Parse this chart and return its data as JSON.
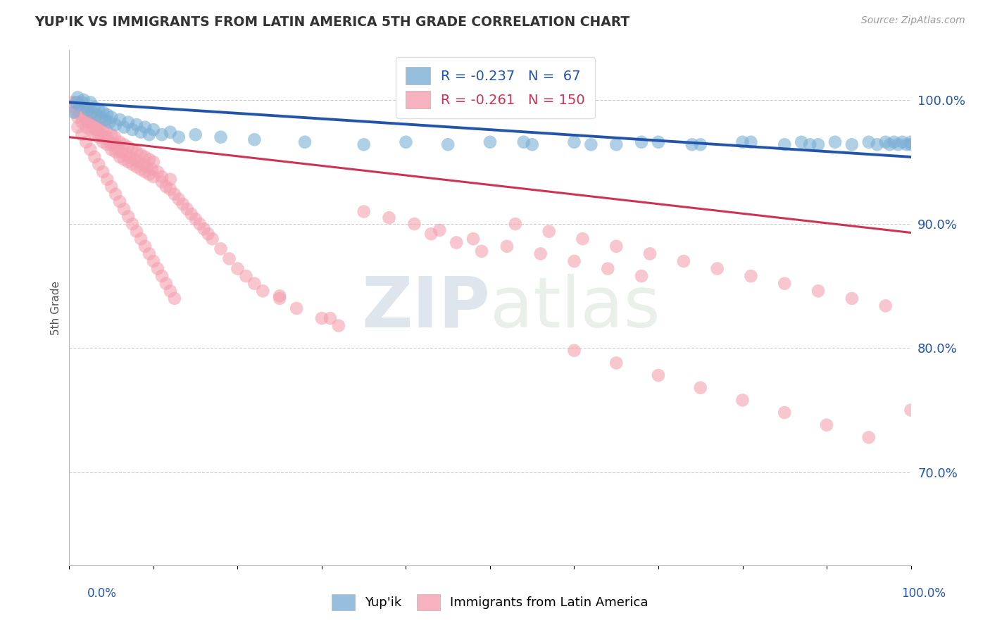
{
  "title": "YUP'IK VS IMMIGRANTS FROM LATIN AMERICA 5TH GRADE CORRELATION CHART",
  "source": "Source: ZipAtlas.com",
  "ylabel": "5th Grade",
  "yticks": [
    0.7,
    0.8,
    0.9,
    1.0
  ],
  "ytick_labels": [
    "70.0%",
    "80.0%",
    "90.0%",
    "100.0%"
  ],
  "ymin": 0.625,
  "ymax": 1.04,
  "xmin": 0.0,
  "xmax": 1.0,
  "blue_R": -0.237,
  "blue_N": 67,
  "pink_R": -0.261,
  "pink_N": 150,
  "blue_color": "#7BAFD4",
  "pink_color": "#F4A0B0",
  "blue_line_color": "#2255AA",
  "pink_line_color": "#CC3355",
  "legend_label_blue": "Yup'ik",
  "legend_label_pink": "Immigrants from Latin America",
  "blue_x": [
    0.005,
    0.008,
    0.01,
    0.012,
    0.015,
    0.017,
    0.02,
    0.022,
    0.025,
    0.027,
    0.03,
    0.033,
    0.035,
    0.038,
    0.04,
    0.043,
    0.045,
    0.048,
    0.05,
    0.055,
    0.06,
    0.065,
    0.07,
    0.075,
    0.08,
    0.085,
    0.09,
    0.095,
    0.1,
    0.11,
    0.12,
    0.13,
    0.15,
    0.18,
    0.22,
    0.28,
    0.35,
    0.4,
    0.45,
    0.5,
    0.55,
    0.6,
    0.65,
    0.7,
    0.75,
    0.8,
    0.85,
    0.87,
    0.89,
    0.91,
    0.93,
    0.95,
    0.96,
    0.97,
    0.975,
    0.98,
    0.985,
    0.99,
    0.995,
    1.0,
    1.0,
    0.54,
    0.62,
    0.68,
    0.74,
    0.81,
    0.88
  ],
  "blue_y": [
    0.99,
    0.998,
    1.002,
    0.996,
    0.998,
    1.0,
    0.994,
    0.992,
    0.998,
    0.99,
    0.994,
    0.988,
    0.992,
    0.986,
    0.99,
    0.984,
    0.988,
    0.982,
    0.986,
    0.98,
    0.984,
    0.978,
    0.982,
    0.976,
    0.98,
    0.974,
    0.978,
    0.972,
    0.976,
    0.972,
    0.974,
    0.97,
    0.972,
    0.97,
    0.968,
    0.966,
    0.964,
    0.966,
    0.964,
    0.966,
    0.964,
    0.966,
    0.964,
    0.966,
    0.964,
    0.966,
    0.964,
    0.966,
    0.964,
    0.966,
    0.964,
    0.966,
    0.964,
    0.966,
    0.964,
    0.966,
    0.964,
    0.966,
    0.964,
    0.966,
    0.964,
    0.966,
    0.964,
    0.966,
    0.964,
    0.966,
    0.964
  ],
  "pink_x": [
    0.004,
    0.006,
    0.008,
    0.01,
    0.01,
    0.012,
    0.014,
    0.015,
    0.015,
    0.018,
    0.02,
    0.02,
    0.022,
    0.024,
    0.025,
    0.025,
    0.028,
    0.03,
    0.03,
    0.032,
    0.034,
    0.035,
    0.035,
    0.038,
    0.04,
    0.04,
    0.042,
    0.044,
    0.045,
    0.045,
    0.048,
    0.05,
    0.05,
    0.052,
    0.054,
    0.055,
    0.055,
    0.058,
    0.06,
    0.06,
    0.062,
    0.065,
    0.065,
    0.068,
    0.07,
    0.07,
    0.072,
    0.075,
    0.075,
    0.078,
    0.08,
    0.08,
    0.082,
    0.085,
    0.085,
    0.088,
    0.09,
    0.09,
    0.092,
    0.095,
    0.095,
    0.098,
    0.1,
    0.1,
    0.105,
    0.11,
    0.11,
    0.115,
    0.12,
    0.12,
    0.125,
    0.13,
    0.135,
    0.14,
    0.145,
    0.15,
    0.155,
    0.16,
    0.165,
    0.17,
    0.18,
    0.19,
    0.2,
    0.21,
    0.22,
    0.23,
    0.25,
    0.27,
    0.3,
    0.32,
    0.35,
    0.38,
    0.41,
    0.44,
    0.48,
    0.52,
    0.56,
    0.6,
    0.64,
    0.68,
    0.43,
    0.46,
    0.49,
    0.25,
    0.31,
    0.6,
    0.65,
    0.7,
    0.75,
    0.8,
    0.85,
    0.9,
    0.95,
    1.0,
    0.53,
    0.57,
    0.61,
    0.65,
    0.69,
    0.73,
    0.77,
    0.81,
    0.85,
    0.89,
    0.93,
    0.97,
    0.01,
    0.015,
    0.02,
    0.025,
    0.03,
    0.035,
    0.04,
    0.045,
    0.05,
    0.055,
    0.06,
    0.065,
    0.07,
    0.075,
    0.08,
    0.085,
    0.09,
    0.095,
    0.1,
    0.105,
    0.11,
    0.115,
    0.12,
    0.125
  ],
  "pink_y": [
    0.998,
    0.994,
    0.99,
    0.998,
    0.986,
    0.992,
    0.988,
    0.994,
    0.982,
    0.986,
    0.992,
    0.978,
    0.982,
    0.988,
    0.976,
    0.982,
    0.978,
    0.984,
    0.972,
    0.976,
    0.982,
    0.97,
    0.976,
    0.972,
    0.978,
    0.966,
    0.97,
    0.976,
    0.964,
    0.97,
    0.966,
    0.972,
    0.96,
    0.964,
    0.97,
    0.958,
    0.964,
    0.96,
    0.966,
    0.954,
    0.958,
    0.964,
    0.952,
    0.956,
    0.962,
    0.95,
    0.954,
    0.96,
    0.948,
    0.952,
    0.958,
    0.946,
    0.95,
    0.956,
    0.944,
    0.948,
    0.954,
    0.942,
    0.946,
    0.952,
    0.94,
    0.944,
    0.95,
    0.938,
    0.942,
    0.938,
    0.934,
    0.93,
    0.936,
    0.928,
    0.924,
    0.92,
    0.916,
    0.912,
    0.908,
    0.904,
    0.9,
    0.896,
    0.892,
    0.888,
    0.88,
    0.872,
    0.864,
    0.858,
    0.852,
    0.846,
    0.84,
    0.832,
    0.824,
    0.818,
    0.91,
    0.905,
    0.9,
    0.895,
    0.888,
    0.882,
    0.876,
    0.87,
    0.864,
    0.858,
    0.892,
    0.885,
    0.878,
    0.842,
    0.824,
    0.798,
    0.788,
    0.778,
    0.768,
    0.758,
    0.748,
    0.738,
    0.728,
    0.75,
    0.9,
    0.894,
    0.888,
    0.882,
    0.876,
    0.87,
    0.864,
    0.858,
    0.852,
    0.846,
    0.84,
    0.834,
    0.978,
    0.972,
    0.966,
    0.96,
    0.954,
    0.948,
    0.942,
    0.936,
    0.93,
    0.924,
    0.918,
    0.912,
    0.906,
    0.9,
    0.894,
    0.888,
    0.882,
    0.876,
    0.87,
    0.864,
    0.858,
    0.852,
    0.846,
    0.84
  ]
}
